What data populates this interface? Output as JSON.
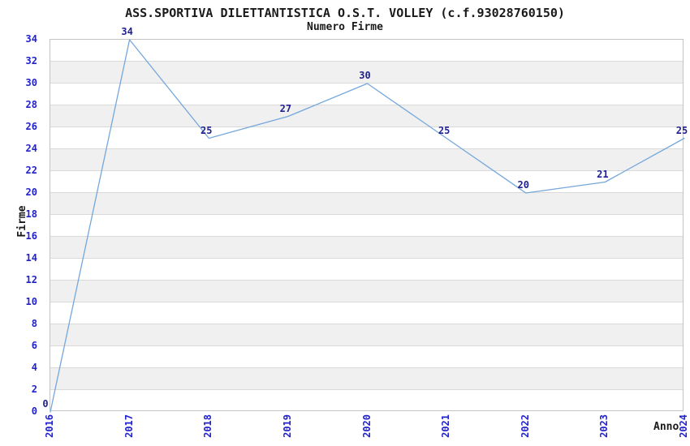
{
  "title": "ASS.SPORTIVA DILETTANTISTICA O.S.T. VOLLEY (c.f.93028760150)",
  "subtitle": "Numero Firme",
  "chart_data": {
    "type": "line",
    "title": "ASS.SPORTIVA DILETTANTISTICA O.S.T. VOLLEY (c.f.93028760150)",
    "subtitle": "Numero Firme",
    "xlabel": "Anno",
    "ylabel": "Firme",
    "x": [
      2016,
      2017,
      2018,
      2019,
      2020,
      2021,
      2022,
      2023,
      2024
    ],
    "series": [
      {
        "name": "Numero Firme",
        "values": [
          0,
          34,
          25,
          27,
          30,
          25,
          20,
          21,
          25
        ]
      }
    ],
    "data_labels_shown": true,
    "ylim": [
      0,
      34
    ],
    "ytick_step": 2,
    "yticks": [
      0,
      2,
      4,
      6,
      8,
      10,
      12,
      14,
      16,
      18,
      20,
      22,
      24,
      26,
      28,
      30,
      32,
      34
    ],
    "grid": "horizontal-bands-alternating",
    "legend": "none"
  },
  "colors": {
    "line": "#74a7dc",
    "tick_label": "#2222cc",
    "data_label": "#1f1f8f",
    "band_gray": "#f0f0f0",
    "band_white": "#ffffff",
    "grid_line": "#d9d9d9",
    "plot_border": "#c4c4c4",
    "text": "#1a1a1a",
    "background": "#ffffff"
  }
}
